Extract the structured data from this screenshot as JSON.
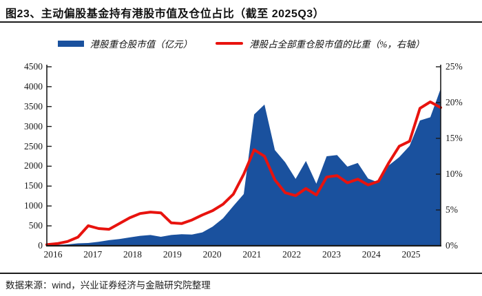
{
  "title": "图23、主动偏股基金持有港股市值及仓位占比（截至 2025Q3）",
  "footer": {
    "source_label": "数据来源：wind，兴业证券经济与金融研究院整理"
  },
  "legend": [
    {
      "label": "港股重仓股市值（亿元）",
      "type": "area",
      "color": "#1a519e"
    },
    {
      "label": "港股占全部重仓股市值的比重（%，右轴）",
      "type": "line",
      "color": "#e8130e"
    }
  ],
  "colors": {
    "area_blue": "#1a519e",
    "line_red": "#e8130e",
    "axis": "#1a1a1a"
  },
  "chart_data": {
    "type": "area",
    "title": "主动偏股基金持有港股市值及仓位占比（截至 2025Q3）",
    "x": [
      "2016Q1",
      "2016Q2",
      "2016Q3",
      "2016Q4",
      "2017Q1",
      "2017Q2",
      "2017Q3",
      "2017Q4",
      "2018Q1",
      "2018Q2",
      "2018Q3",
      "2018Q4",
      "2019Q1",
      "2019Q2",
      "2019Q3",
      "2019Q4",
      "2020Q1",
      "2020Q2",
      "2020Q3",
      "2020Q4",
      "2021Q1",
      "2021Q2",
      "2021Q3",
      "2021Q4",
      "2022Q1",
      "2022Q2",
      "2022Q3",
      "2022Q4",
      "2023Q1",
      "2023Q2",
      "2023Q3",
      "2023Q4",
      "2024Q1",
      "2024Q2",
      "2024Q3",
      "2024Q4",
      "2025Q1",
      "2025Q2",
      "2025Q3"
    ],
    "series": [
      {
        "name": "港股重仓股市值（亿元）",
        "type": "area",
        "axis": "left",
        "color": "#1a519e",
        "values": [
          10,
          20,
          35,
          60,
          70,
          100,
          140,
          170,
          210,
          250,
          270,
          225,
          270,
          290,
          280,
          335,
          480,
          690,
          1000,
          1300,
          3300,
          3550,
          2405,
          2100,
          1680,
          2130,
          1560,
          2250,
          2280,
          1990,
          2080,
          1690,
          1590,
          2020,
          2230,
          2510,
          3150,
          3230,
          3950
        ]
      },
      {
        "name": "港股占全部重仓股市值的比重（%，右轴）",
        "type": "line",
        "axis": "right",
        "color": "#e8130e",
        "values": [
          0.15,
          0.3,
          0.6,
          1.2,
          2.8,
          2.4,
          2.3,
          3.1,
          3.9,
          4.5,
          4.7,
          4.6,
          3.2,
          3.1,
          3.6,
          4.3,
          4.9,
          5.8,
          7.2,
          10.0,
          13.4,
          12.5,
          9.2,
          7.4,
          7.0,
          8.0,
          7.1,
          9.6,
          9.8,
          8.8,
          9.3,
          8.5,
          9.0,
          11.6,
          13.9,
          14.6,
          19.2,
          20.1,
          19.3
        ]
      }
    ],
    "left_axis": {
      "min": 0,
      "max": 4500,
      "step": 500,
      "tick_labels": [
        "0",
        "500",
        "1000",
        "1500",
        "2000",
        "2500",
        "3000",
        "3500",
        "4000",
        "4500"
      ]
    },
    "right_axis": {
      "min": 0,
      "max": 25,
      "step": 5,
      "suffix": "%",
      "tick_labels": [
        "0%",
        "5%",
        "10%",
        "15%",
        "20%",
        "25%"
      ]
    },
    "x_axis": {
      "year_labels": [
        "2016",
        "2017",
        "2018",
        "2019",
        "2020",
        "2021",
        "2022",
        "2023",
        "2024",
        "2025"
      ]
    },
    "grid": false,
    "legend_position": "top"
  }
}
